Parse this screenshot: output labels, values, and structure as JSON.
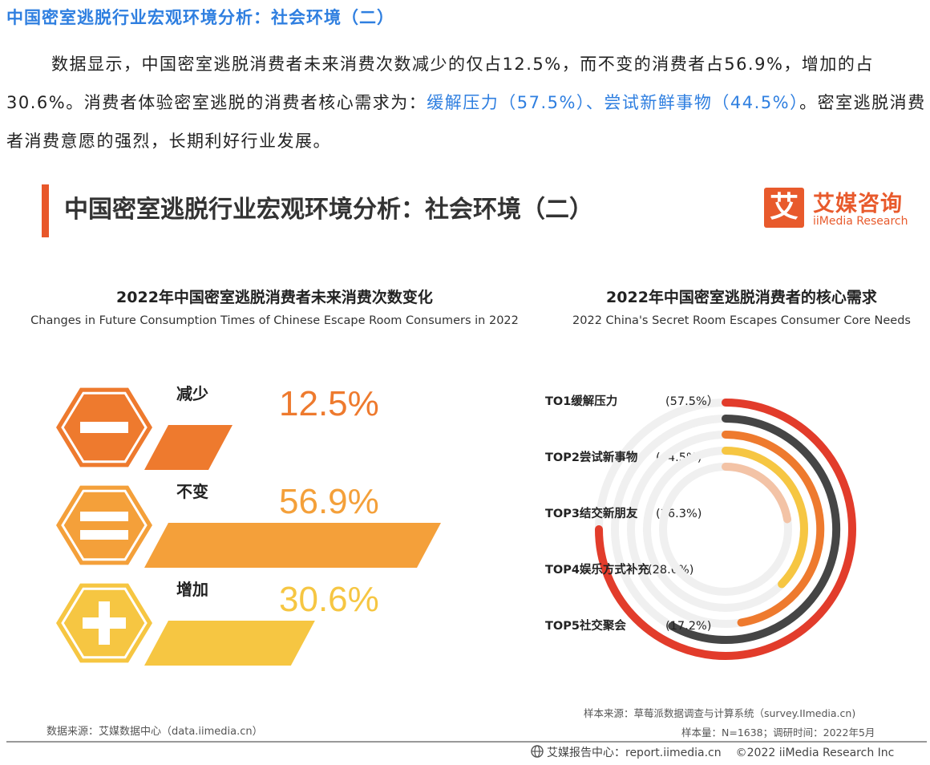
{
  "header": {
    "section_title": "中国密室逃脱行业宏观环境分析：社会环境（二）",
    "intro_part1": "数据显示，中国密室逃脱消费者未来消费次数减少的仅占12.5%，而不变的消费者占56.9%，增加的占30.6%。消费者体验密室逃脱的消费者核心需求为：",
    "intro_highlight": "缓解压力（57.5%）、尝试新鲜事物（44.5%）",
    "intro_part2": "。密室逃脱消费者消费意愿的强烈，长期利好行业发展。"
  },
  "slide": {
    "title": "中国密室逃脱行业宏观环境分析：社会环境（二）",
    "logo_mark": "艾",
    "logo_cn": "艾媒咨询",
    "logo_en": "iiMedia Research"
  },
  "colors": {
    "decrease": "#ee7a2e",
    "same": "#f4a03a",
    "increase": "#f6c642",
    "ring1": "#e23c2b",
    "ring2": "#454545",
    "ring3": "#ee7a2e",
    "ring4": "#f6c642",
    "ring5": "#f3c3a6",
    "track": "#f0f0f0",
    "accent": "#e8572a"
  },
  "chart_data": [
    {
      "type": "bar",
      "title": "2022年中国密室逃脱消费者未来消费次数变化",
      "subtitle": "Changes in Future Consumption Times of Chinese Escape Room Consumers in 2022",
      "categories": [
        "减少",
        "不变",
        "增加"
      ],
      "values": [
        12.5,
        56.9,
        30.6
      ],
      "value_labels": [
        "12.5%",
        "56.9%",
        "30.6%"
      ],
      "icons": [
        "minus-icon",
        "equals-icon",
        "plus-icon"
      ],
      "unit": "%"
    },
    {
      "type": "radial-bar",
      "title": "2022年中国密室逃脱消费者的核心需求",
      "subtitle": "2022 China's Secret Room Escapes Consumer Core Needs",
      "categories": [
        "TO1缓解压力",
        "TOP2尝试新事物",
        "TOP3结交新朋友",
        "TOP4娱乐方式补充",
        "TOP5社交聚会"
      ],
      "values": [
        57.5,
        44.5,
        36.3,
        28.6,
        17.2
      ],
      "value_labels": [
        "(57.5%）",
        "(44.5%)",
        "(36.3%)",
        "(28.6%)",
        "(17.2%)"
      ],
      "unit": "%"
    }
  ],
  "footer": {
    "source_left": "数据来源：艾媒数据中心（data.iimedia.cn）",
    "sample_source": "样本来源：草莓派数据调查与计算系统（survey.IImedia.cn)",
    "sample_size": "样本量：N=1638；调研时间：2022年5月",
    "report_center": "艾媒报告中心：report.iimedia.cn",
    "copyright": "©2022  iiMedia Research  Inc"
  }
}
